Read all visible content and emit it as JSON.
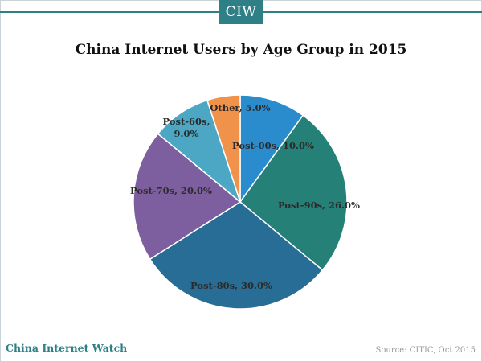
{
  "header": {
    "logo_text": "CIW"
  },
  "footer": {
    "brand": "China Internet Watch",
    "source": "Source: CITIC, Oct 2015"
  },
  "colors": {
    "accent": "#2e7f86"
  },
  "chart_data": {
    "type": "pie",
    "title": "China Internet Users by Age Group in 2015",
    "slices": [
      {
        "label": "Post-00s, 10.0%",
        "value": 10.0,
        "color": "#2a8ccc"
      },
      {
        "label": "Post-90s, 26.0%",
        "value": 26.0,
        "color": "#258077"
      },
      {
        "label": "Post-80s, 30.0%",
        "value": 30.0,
        "color": "#286d96"
      },
      {
        "label": "Post-70s, 20.0%",
        "value": 20.0,
        "color": "#7d5f9f"
      },
      {
        "label": "Post-60s,\n9.0%",
        "value": 9.0,
        "color": "#4ba7c3"
      },
      {
        "label": "Other, 5.0%",
        "value": 5.0,
        "color": "#f0924a"
      }
    ]
  }
}
